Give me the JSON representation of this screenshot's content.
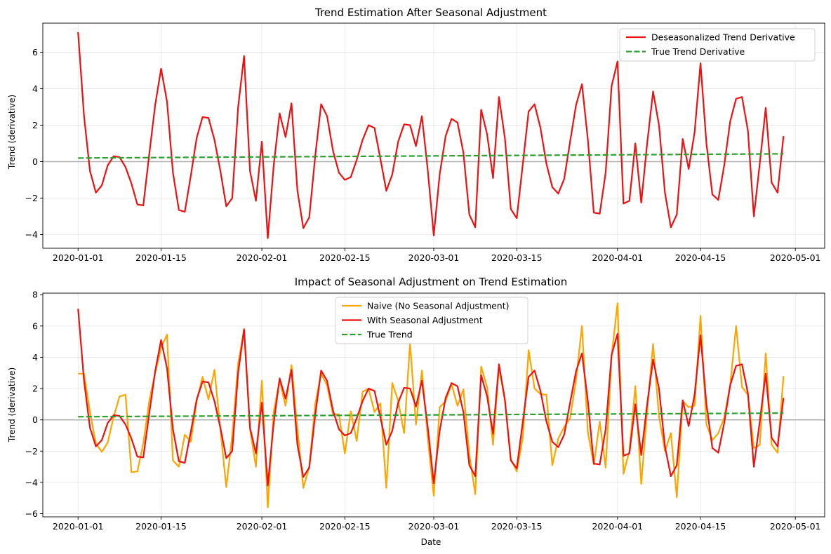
{
  "chart_data": [
    {
      "type": "line",
      "title": "Trend Estimation After Seasonal Adjustment",
      "xlabel": "",
      "ylabel": "Trend (derivative)",
      "x_start": "2020-01-01",
      "x_step_days": 1,
      "xlim_days": [
        -5.95,
        125.95
      ],
      "ylim": [
        -4.75,
        7.6
      ],
      "yticks": [
        -4,
        -2,
        0,
        2,
        4,
        6
      ],
      "ytick_labels": [
        "−4",
        "−2",
        "0",
        "2",
        "4",
        "6"
      ],
      "xticks_days": [
        0,
        14,
        31,
        45,
        60,
        74,
        91,
        105,
        121
      ],
      "xtick_labels": [
        "2020-01-01",
        "2020-01-15",
        "2020-02-01",
        "2020-02-15",
        "2020-03-01",
        "2020-03-15",
        "2020-04-01",
        "2020-04-15",
        "2020-05-01"
      ],
      "grid": true,
      "zero_line": 0,
      "legend_position": "top-right",
      "series": [
        {
          "name": "Deseasonalized Trend Derivative",
          "color": "#ee1111",
          "style": "solid",
          "values": [
            7.1,
            2.5,
            -0.5,
            -1.7,
            -1.3,
            -0.2,
            0.3,
            0.25,
            -0.3,
            -1.2,
            -2.35,
            -2.4,
            0.4,
            3.1,
            5.1,
            3.3,
            -0.6,
            -2.65,
            -2.75,
            -0.8,
            1.3,
            2.45,
            2.4,
            1.2,
            -0.5,
            -2.45,
            -2.0,
            3.0,
            5.8,
            -0.5,
            -2.15,
            1.1,
            -4.2,
            -0.2,
            2.65,
            1.35,
            3.2,
            -1.6,
            -3.65,
            -3.05,
            0.3,
            3.15,
            2.5,
            0.6,
            -0.6,
            -1.0,
            -0.85,
            0.1,
            1.2,
            2.0,
            1.85,
            0.15,
            -1.6,
            -0.7,
            1.1,
            2.05,
            2.0,
            0.85,
            2.5,
            -0.5,
            -4.05,
            -0.7,
            1.4,
            2.35,
            2.15,
            0.5,
            -2.9,
            -3.6,
            2.85,
            1.5,
            -0.9,
            3.55,
            1.3,
            -2.6,
            -3.1,
            -0.2,
            2.75,
            3.15,
            1.85,
            -0.1,
            -1.4,
            -1.75,
            -0.95,
            1.1,
            3.1,
            4.25,
            1.2,
            -2.8,
            -2.85,
            -0.6,
            4.15,
            5.5,
            -2.3,
            -2.15,
            1.0,
            -2.25,
            1.0,
            3.85,
            2.0,
            -1.7,
            -3.6,
            -2.9,
            1.25,
            -0.4,
            1.6,
            5.4,
            1.0,
            -1.8,
            -2.1,
            -0.2,
            2.2,
            3.45,
            3.55,
            1.7,
            -3.0,
            -0.1,
            2.95,
            -1.15,
            -1.7,
            1.4
          ]
        },
        {
          "name": "True Trend Derivative",
          "color": "#2ca02c",
          "style": "dashed",
          "start": 0.2,
          "end": 0.43
        }
      ]
    },
    {
      "type": "line",
      "title": "Impact of Seasonal Adjustment on Trend Estimation",
      "xlabel": "Date",
      "ylabel": "Trend (derivative)",
      "x_start": "2020-01-01",
      "x_step_days": 1,
      "xlim_days": [
        -5.95,
        125.95
      ],
      "ylim": [
        -6.2,
        8.1
      ],
      "yticks": [
        -6,
        -4,
        -2,
        0,
        2,
        4,
        6,
        8
      ],
      "ytick_labels": [
        "−6",
        "−4",
        "−2",
        "0",
        "2",
        "4",
        "6",
        "8"
      ],
      "xticks_days": [
        0,
        14,
        31,
        45,
        60,
        74,
        91,
        105,
        121
      ],
      "xtick_labels": [
        "2020-01-01",
        "2020-01-15",
        "2020-02-01",
        "2020-02-15",
        "2020-03-01",
        "2020-03-15",
        "2020-04-01",
        "2020-04-15",
        "2020-05-01"
      ],
      "grid": true,
      "zero_line": 0,
      "legend_position": "top-center",
      "series": [
        {
          "name": "Naive (No Seasonal Adjustment)",
          "color": "#ffa500",
          "style": "solid",
          "values": [
            2.95,
            2.95,
            0.5,
            -1.5,
            -2.05,
            -1.45,
            0.2,
            1.5,
            1.6,
            -3.35,
            -3.3,
            -1.5,
            1.2,
            3.0,
            4.6,
            5.45,
            -2.6,
            -3.0,
            -0.95,
            -1.4,
            1.2,
            2.75,
            1.3,
            3.2,
            -0.6,
            -4.3,
            -1.0,
            3.6,
            5.75,
            -0.6,
            -3.0,
            2.5,
            -5.6,
            0.55,
            2.5,
            0.9,
            3.5,
            -0.6,
            -4.35,
            -3.0,
            1.0,
            2.95,
            2.2,
            0.35,
            0.35,
            -2.15,
            0.55,
            -1.35,
            1.8,
            2.0,
            0.5,
            1.05,
            -4.35,
            2.35,
            1.2,
            -0.85,
            4.9,
            -0.3,
            3.15,
            -1.2,
            -4.85,
            0.8,
            1.2,
            2.3,
            0.9,
            1.95,
            -2.2,
            -4.75,
            3.4,
            2.1,
            -1.6,
            3.4,
            1.2,
            -2.5,
            -3.3,
            -1.2,
            4.45,
            2.0,
            1.65,
            1.6,
            -2.9,
            -1.2,
            -0.45,
            0.1,
            2.55,
            6.0,
            -0.8,
            -2.85,
            -0.1,
            -3.05,
            4.1,
            7.45,
            -3.45,
            -2.0,
            2.15,
            -4.1,
            0.6,
            4.85,
            0.2,
            -2.0,
            -0.85,
            -4.95,
            1.2,
            0.8,
            0.9,
            6.65,
            -0.3,
            -1.3,
            -0.85,
            0.15,
            2.2,
            6.0,
            2.1,
            1.6,
            -1.8,
            -1.6,
            4.25,
            -1.6,
            -2.1,
            2.8
          ]
        },
        {
          "name": "With Seasonal Adjustment",
          "color": "#ee1111",
          "style": "solid",
          "same_as": "Deseasonalized Trend Derivative"
        },
        {
          "name": "True Trend",
          "color": "#2ca02c",
          "style": "dashed",
          "start": 0.2,
          "end": 0.43
        }
      ]
    }
  ]
}
